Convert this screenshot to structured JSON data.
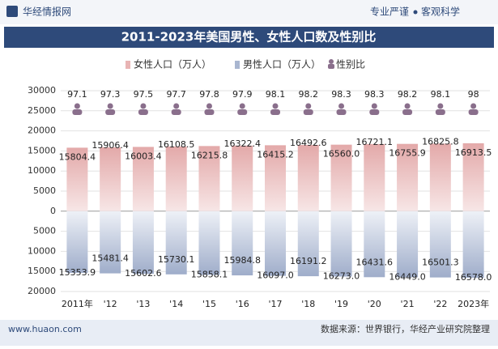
{
  "header": {
    "brand": "华经情报网",
    "slogan_left": "专业严谨",
    "slogan_right": "客观科学"
  },
  "chart_data": {
    "type": "bar",
    "title": "2011-2023年美国男性、女性人口数及性别比",
    "categories": [
      "2011年",
      "'12",
      "'13",
      "'14",
      "'15",
      "'16",
      "'17",
      "'18",
      "'19",
      "'20",
      "'21",
      "'22",
      "2023年"
    ],
    "series": [
      {
        "name": "女性人口（万人）",
        "color": "#e8b4b4",
        "values": [
          15804.4,
          15906.4,
          16003.4,
          16108.5,
          16215.8,
          16322.4,
          16415.2,
          16492.6,
          16560.0,
          16721.1,
          16755.9,
          16825.8,
          16913.5
        ],
        "value_labels": [
          "15804.4",
          "15906.4",
          "16003.4",
          "16108.5",
          "16215.8",
          "16322.4",
          "16415.2",
          "16492.6",
          "16560.0",
          "16721.1",
          "16755.9",
          "16825.8",
          "16913.5"
        ]
      },
      {
        "name": "男性人口（万人）",
        "color": "#a9b6d0",
        "values": [
          -15353.9,
          -15481.4,
          -15602.6,
          -15730.1,
          -15858.1,
          -15984.8,
          -16097.0,
          -16191.2,
          -16273.0,
          -16431.6,
          -16449.0,
          -16501.3,
          -16578.0
        ],
        "value_labels": [
          "15353.9",
          "15481.4",
          "15602.6",
          "15730.1",
          "15858.1",
          "15984.8",
          "16097.0",
          "16191.2",
          "16273.0",
          "16431.6",
          "16449.0",
          "16501.3",
          "16578.0"
        ]
      },
      {
        "name": "性别比",
        "color": "#8a6f8c",
        "values": [
          97.1,
          97.3,
          97.5,
          97.7,
          97.8,
          97.9,
          98.1,
          98.2,
          98.3,
          98.3,
          98.2,
          98.1,
          98
        ]
      }
    ],
    "ylim": [
      -20000,
      30000
    ],
    "yticks": [
      {
        "value": -20000,
        "label": "20000"
      },
      {
        "value": -15000,
        "label": "15000"
      },
      {
        "value": -10000,
        "label": "10000"
      },
      {
        "value": -5000,
        "label": "5000"
      },
      0,
      5000,
      10000,
      15000,
      20000,
      25000,
      30000
    ],
    "grid": true
  },
  "footer": {
    "website": "www.huaon.com",
    "source": "数据来源：世界银行，华经产业研究院整理"
  }
}
